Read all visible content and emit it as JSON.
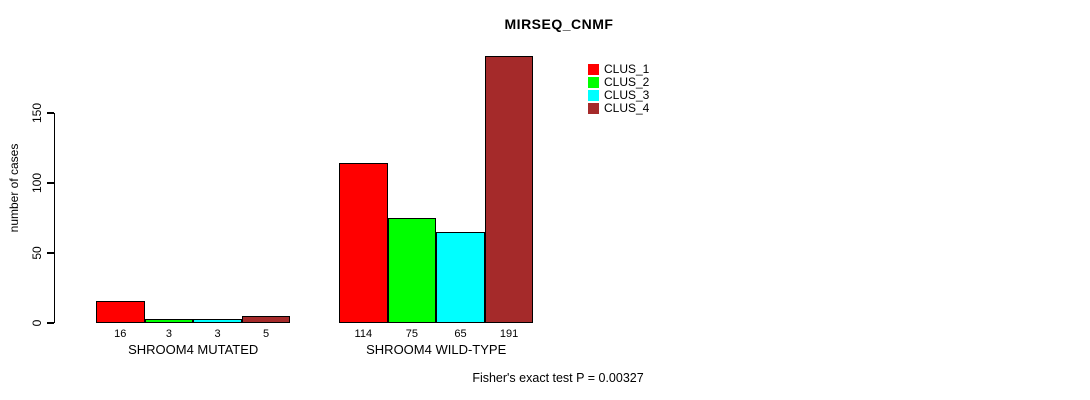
{
  "title": "MIRSEQ_CNMF",
  "chart_data": {
    "type": "bar",
    "title": "MIRSEQ_CNMF",
    "categories": [
      "SHROOM4 MUTATED",
      "SHROOM4 WILD-TYPE"
    ],
    "series": [
      {
        "name": "CLUS_1",
        "color": "#ff0000",
        "values": [
          16,
          114
        ]
      },
      {
        "name": "CLUS_2",
        "color": "#00ff00",
        "values": [
          3,
          75
        ]
      },
      {
        "name": "CLUS_3",
        "color": "#00ffff",
        "values": [
          3,
          65
        ]
      },
      {
        "name": "CLUS_4",
        "color": "#a52a2a",
        "values": [
          5,
          191
        ]
      }
    ],
    "xlabel": "",
    "ylabel": "number of cases",
    "yticks": [
      0,
      50,
      100,
      150
    ],
    "ylim": [
      0,
      200
    ],
    "show_bar_value_labels": true,
    "grid": false,
    "legend": {
      "position": "top-right-inside",
      "entries": [
        {
          "label": "CLUS_1",
          "color": "#ff0000"
        },
        {
          "label": "CLUS_2",
          "color": "#00ff00"
        },
        {
          "label": "CLUS_3",
          "color": "#00ffff"
        },
        {
          "label": "CLUS_4",
          "color": "#a52a2a"
        }
      ]
    },
    "annotation": "Fisher's exact test P = 0.00327"
  }
}
